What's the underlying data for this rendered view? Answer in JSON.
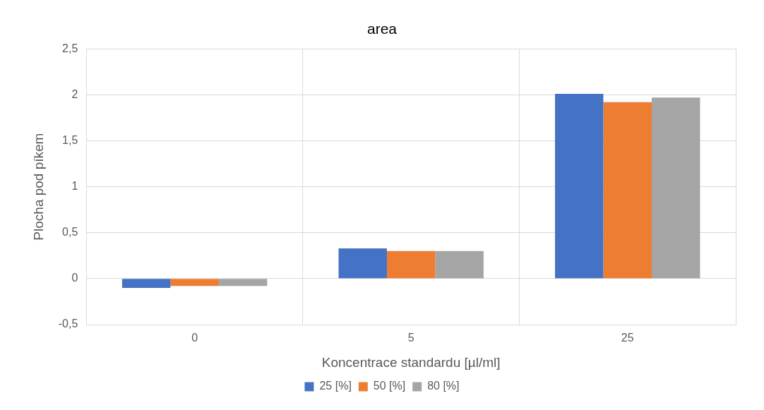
{
  "chart_data": {
    "type": "bar",
    "title": "area",
    "xlabel": "Koncentrace standardu [µl/ml]",
    "ylabel": "Plocha pod píkem",
    "categories": [
      "0",
      "5",
      "25"
    ],
    "series": [
      {
        "name": "25 [%]",
        "color": "#4472c4",
        "values": [
          -0.1,
          0.33,
          2.01
        ]
      },
      {
        "name": "50 [%]",
        "color": "#ed7d31",
        "values": [
          -0.08,
          0.3,
          1.92
        ]
      },
      {
        "name": "80 [%]",
        "color": "#a5a5a5",
        "values": [
          -0.08,
          0.3,
          1.97
        ]
      }
    ],
    "ylim": [
      -0.5,
      2.5
    ],
    "yticks": [
      {
        "value": -0.5,
        "label": "-0,5"
      },
      {
        "value": 0,
        "label": "0"
      },
      {
        "value": 0.5,
        "label": "0,5"
      },
      {
        "value": 1,
        "label": "1"
      },
      {
        "value": 1.5,
        "label": "1,5"
      },
      {
        "value": 2,
        "label": "2"
      },
      {
        "value": 2.5,
        "label": "2,5"
      }
    ],
    "grid": true,
    "legend": "bottom"
  }
}
